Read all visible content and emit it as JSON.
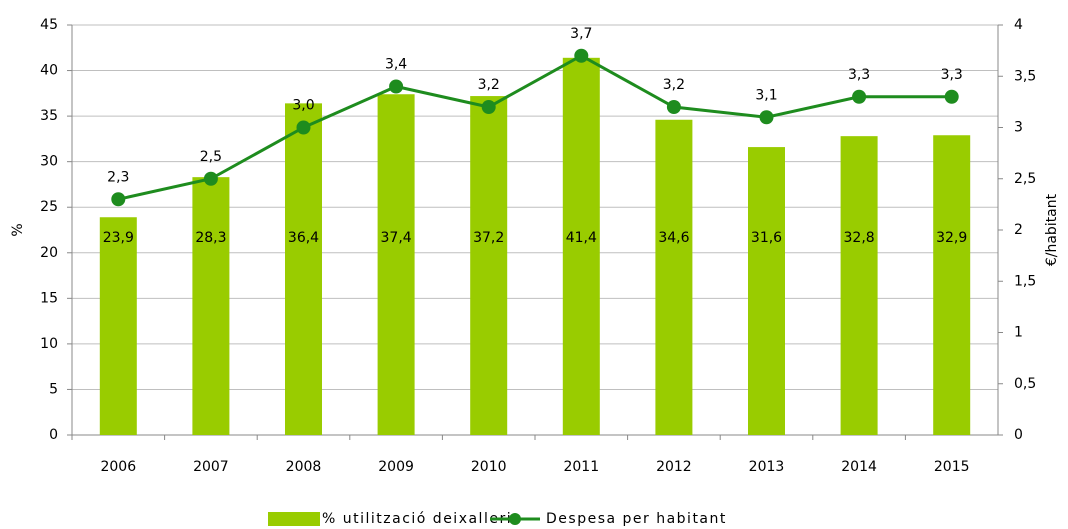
{
  "chart_data": {
    "type": "bar",
    "categories": [
      "2006",
      "2007",
      "2008",
      "2009",
      "2010",
      "2011",
      "2012",
      "2013",
      "2014",
      "2015"
    ],
    "series": [
      {
        "name": "% utilització deixalleria",
        "type": "bar",
        "color": "#99cc00",
        "values": [
          23.9,
          28.3,
          36.4,
          37.4,
          37.2,
          41.4,
          34.6,
          31.6,
          32.8,
          32.9
        ],
        "value_labels": [
          "23,9",
          "28,3",
          "36,4",
          "37,4",
          "37,2",
          "41,4",
          "34,6",
          "31,6",
          "32,8",
          "32,9"
        ]
      },
      {
        "name": "Despesa per habitant",
        "type": "line",
        "axis": "y2",
        "color": "#1e8c1e",
        "values": [
          2.3,
          2.5,
          3.0,
          3.4,
          3.2,
          3.7,
          3.2,
          3.1,
          3.3,
          3.3
        ],
        "value_labels": [
          "2,3",
          "2,5",
          "3,0",
          "3,4",
          "3,2",
          "3,7",
          "3,2",
          "3,1",
          "3,3",
          "3,3"
        ]
      }
    ],
    "ylabel": "%",
    "y2label": "€/habitant",
    "ylim": [
      0,
      45
    ],
    "yticks": [
      0,
      5,
      10,
      15,
      20,
      25,
      30,
      35,
      40,
      45
    ],
    "y2lim": [
      0,
      4
    ],
    "y2ticks": [
      0,
      {
        "value": 0.5,
        "label": "0,5"
      },
      1,
      {
        "value": 1.5,
        "label": "1,5"
      },
      2,
      {
        "value": 2.5,
        "label": "2,5"
      },
      3,
      {
        "value": 3.5,
        "label": "3,5"
      },
      4
    ],
    "grid": true,
    "legend": "bottom"
  }
}
